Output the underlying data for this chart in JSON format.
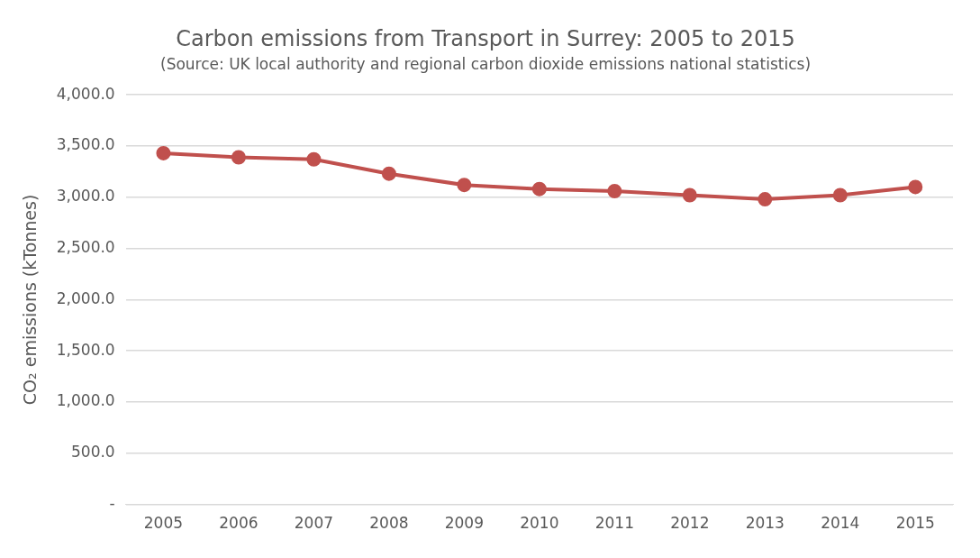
{
  "chart_data": {
    "type": "line",
    "title": "Carbon emissions from Transport in Surrey: 2005 to 2015",
    "subtitle": "(Source: UK local authority and regional carbon dioxide emissions national statistics)",
    "ylabel": "CO₂ emissions (kTonnes)",
    "categories": [
      "2005",
      "2006",
      "2007",
      "2008",
      "2009",
      "2010",
      "2011",
      "2012",
      "2013",
      "2014",
      "2015"
    ],
    "series": [
      {
        "color": "#c0504d",
        "values": [
          3430,
          3390,
          3370,
          3230,
          3120,
          3080,
          3060,
          3020,
          2980,
          3020,
          3100
        ]
      }
    ],
    "ylim": [
      0,
      4000
    ],
    "yticks": [
      {
        "value": 0,
        "label": "-"
      },
      {
        "value": 500,
        "label": "500.0"
      },
      {
        "value": 1000,
        "label": "1,000.0"
      },
      {
        "value": 1500,
        "label": "1,500.0"
      },
      {
        "value": 2000,
        "label": "2,000.0"
      },
      {
        "value": 2500,
        "label": "2,500.0"
      },
      {
        "value": 3000,
        "label": "3,000.0"
      },
      {
        "value": 3500,
        "label": "3,500.0"
      },
      {
        "value": 4000,
        "label": "4,000.0"
      }
    ],
    "grid": "y",
    "legend": false,
    "marker": "circle",
    "line_style": "solid"
  }
}
